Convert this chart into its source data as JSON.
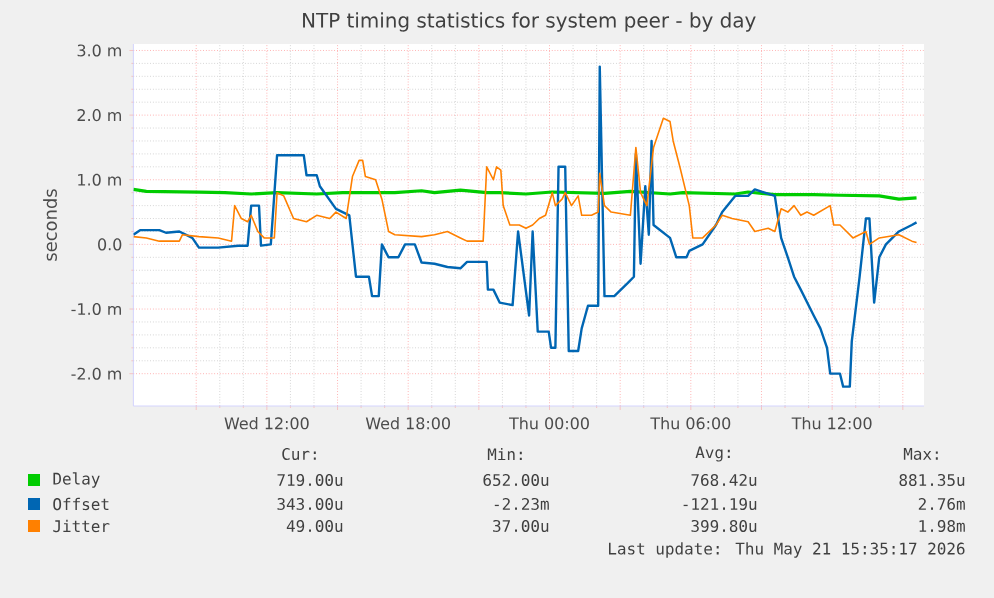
{
  "chart_data": {
    "type": "line",
    "title": "NTP timing statistics for system peer - by day",
    "ylabel": "seconds",
    "xlim": [
      "2026-05-20T06:20",
      "2026-05-21T15:54"
    ],
    "ylim": [
      -2.5,
      3.1
    ],
    "xticks": [
      {
        "value": "2026-05-20T09:00",
        "label": null
      },
      {
        "value": "2026-05-20T12:00",
        "label": "Wed 12:00"
      },
      {
        "value": "2026-05-20T15:00",
        "label": null
      },
      {
        "value": "2026-05-20T18:00",
        "label": "Wed 18:00"
      },
      {
        "value": "2026-05-20T21:00",
        "label": null
      },
      {
        "value": "2026-05-21T00:00",
        "label": "Thu 00:00"
      },
      {
        "value": "2026-05-21T03:00",
        "label": null
      },
      {
        "value": "2026-05-21T06:00",
        "label": "Thu 06:00"
      },
      {
        "value": "2026-05-21T09:00",
        "label": null
      },
      {
        "value": "2026-05-21T12:00",
        "label": "Thu 12:00"
      },
      {
        "value": "2026-05-21T15:00",
        "label": null
      }
    ],
    "yticks": [
      {
        "value": -2,
        "label": "-2.0 m"
      },
      {
        "value": -1,
        "label": "-1.0 m"
      },
      {
        "value": 0,
        "label": "0.0"
      },
      {
        "value": 1,
        "label": "1.0 m"
      },
      {
        "value": 2,
        "label": "2.0 m"
      },
      {
        "value": 3,
        "label": "3.0 m"
      }
    ],
    "grid": true,
    "legend": "bottom",
    "series": [
      {
        "name": "Delay",
        "color": "#00cc00",
        "x": [
          "2026-05-20T06:20",
          "2026-05-20T06:53",
          "2026-05-20T09:07",
          "2026-05-20T10:13",
          "2026-05-20T11:20",
          "2026-05-20T12:26",
          "2026-05-20T14:07",
          "2026-05-20T15:13",
          "2026-05-20T17:26",
          "2026-05-20T18:34",
          "2026-05-20T19:07",
          "2026-05-20T20:13",
          "2026-05-20T21:20",
          "2026-05-20T21:53",
          "2026-05-20T23:00",
          "2026-05-21T00:07",
          "2026-05-21T02:20",
          "2026-05-21T03:26",
          "2026-05-21T05:07",
          "2026-05-21T05:40",
          "2026-05-21T07:53",
          "2026-05-21T08:26",
          "2026-05-21T09:34",
          "2026-05-21T11:13",
          "2026-05-21T12:20",
          "2026-05-21T14:00",
          "2026-05-21T14:50",
          "2026-05-21T15:35"
        ],
        "values": [
          0.85,
          0.82,
          0.81,
          0.8,
          0.78,
          0.8,
          0.78,
          0.8,
          0.8,
          0.83,
          0.8,
          0.84,
          0.8,
          0.8,
          0.78,
          0.81,
          0.79,
          0.82,
          0.78,
          0.8,
          0.78,
          0.81,
          0.77,
          0.77,
          0.76,
          0.75,
          0.7,
          0.72
        ]
      },
      {
        "name": "Offset",
        "color": "#0066b3",
        "x": [
          "2026-05-20T06:20",
          "2026-05-20T06:37",
          "2026-05-20T07:26",
          "2026-05-20T07:43",
          "2026-05-20T08:17",
          "2026-05-20T08:50",
          "2026-05-20T09:07",
          "2026-05-20T09:56",
          "2026-05-20T10:47",
          "2026-05-20T11:11",
          "2026-05-20T11:20",
          "2026-05-20T11:40",
          "2026-05-20T11:45",
          "2026-05-20T12:10",
          "2026-05-20T12:26",
          "2026-05-20T13:34",
          "2026-05-20T13:41",
          "2026-05-20T14:07",
          "2026-05-20T14:15",
          "2026-05-20T14:56",
          "2026-05-20T15:30",
          "2026-05-20T15:47",
          "2026-05-20T16:20",
          "2026-05-20T16:28",
          "2026-05-20T16:45",
          "2026-05-20T16:53",
          "2026-05-20T17:10",
          "2026-05-20T17:35",
          "2026-05-20T17:52",
          "2026-05-20T18:17",
          "2026-05-20T18:34",
          "2026-05-20T19:07",
          "2026-05-20T19:40",
          "2026-05-20T20:13",
          "2026-05-20T20:30",
          "2026-05-20T21:20",
          "2026-05-20T21:23",
          "2026-05-20T21:37",
          "2026-05-20T21:53",
          "2026-05-20T22:26",
          "2026-05-20T22:40",
          "2026-05-20T23:08",
          "2026-05-20T23:17",
          "2026-05-20T23:30",
          "2026-05-20T23:58",
          "2026-05-21T00:04",
          "2026-05-21T00:15",
          "2026-05-21T00:23",
          "2026-05-21T00:40",
          "2026-05-21T00:49",
          "2026-05-21T01:13",
          "2026-05-21T01:22",
          "2026-05-21T01:38",
          "2026-05-21T02:04",
          "2026-05-21T02:08",
          "2026-05-21T02:20",
          "2026-05-21T02:45",
          "2026-05-21T03:19",
          "2026-05-21T03:35",
          "2026-05-21T03:40",
          "2026-05-21T03:52",
          "2026-05-21T04:04",
          "2026-05-21T04:13",
          "2026-05-21T04:20",
          "2026-05-21T04:25",
          "2026-05-21T05:07",
          "2026-05-21T05:23",
          "2026-05-21T05:49",
          "2026-05-21T05:56",
          "2026-05-21T06:30",
          "2026-05-21T07:04",
          "2026-05-21T07:20",
          "2026-05-21T07:53",
          "2026-05-21T08:26",
          "2026-05-21T08:43",
          "2026-05-21T09:34",
          "2026-05-21T09:50",
          "2026-05-21T10:07",
          "2026-05-21T10:23",
          "2026-05-21T10:40",
          "2026-05-21T11:13",
          "2026-05-21T11:30",
          "2026-05-21T11:47",
          "2026-05-21T11:55",
          "2026-05-21T12:20",
          "2026-05-21T12:28",
          "2026-05-21T12:45",
          "2026-05-21T12:50",
          "2026-05-21T13:02",
          "2026-05-21T13:10",
          "2026-05-21T13:26",
          "2026-05-21T13:35",
          "2026-05-21T13:47",
          "2026-05-21T14:00",
          "2026-05-21T14:17",
          "2026-05-21T14:50",
          "2026-05-21T15:23",
          "2026-05-21T15:35"
        ],
        "values": [
          0.15,
          0.22,
          0.22,
          0.18,
          0.2,
          0.1,
          -0.05,
          -0.05,
          -0.02,
          -0.02,
          0.6,
          0.6,
          -0.02,
          0.0,
          1.38,
          1.38,
          1.07,
          1.07,
          0.9,
          0.55,
          0.45,
          -0.5,
          -0.5,
          -0.8,
          -0.8,
          0.0,
          -0.2,
          -0.2,
          0.0,
          0.0,
          -0.28,
          -0.3,
          -0.35,
          -0.37,
          -0.27,
          -0.27,
          -0.7,
          -0.7,
          -0.9,
          -0.94,
          0.2,
          -1.1,
          0.2,
          -1.35,
          -1.35,
          -1.6,
          -1.6,
          1.2,
          1.2,
          -1.65,
          -1.65,
          -1.3,
          -0.95,
          -0.95,
          2.75,
          -0.8,
          -0.8,
          -0.6,
          -0.5,
          1.4,
          -0.3,
          0.9,
          0.15,
          1.6,
          0.3,
          0.1,
          -0.2,
          -0.2,
          -0.1,
          0.0,
          0.3,
          0.5,
          0.75,
          0.75,
          0.85,
          0.75,
          0.1,
          -0.2,
          -0.5,
          -0.7,
          -1.1,
          -1.3,
          -1.6,
          -2.0,
          -2.0,
          -2.2,
          -2.2,
          -1.5,
          -0.9,
          -0.5,
          0.4,
          0.4,
          -0.9,
          -0.2,
          0.0,
          0.2,
          0.3,
          0.34
        ]
      },
      {
        "name": "Jitter",
        "color": "#ff8000",
        "x": [
          "2026-05-20T06:20",
          "2026-05-20T06:53",
          "2026-05-20T07:26",
          "2026-05-20T08:17",
          "2026-05-20T08:25",
          "2026-05-20T09:07",
          "2026-05-20T09:56",
          "2026-05-20T10:30",
          "2026-05-20T10:38",
          "2026-05-20T10:55",
          "2026-05-20T11:11",
          "2026-05-20T11:20",
          "2026-05-20T11:37",
          "2026-05-20T11:53",
          "2026-05-20T12:19",
          "2026-05-20T12:26",
          "2026-05-20T12:43",
          "2026-05-20T13:08",
          "2026-05-20T13:41",
          "2026-05-20T14:07",
          "2026-05-20T14:40",
          "2026-05-20T14:56",
          "2026-05-20T15:22",
          "2026-05-20T15:38",
          "2026-05-20T15:55",
          "2026-05-20T16:04",
          "2026-05-20T16:11",
          "2026-05-20T16:37",
          "2026-05-20T16:53",
          "2026-05-20T17:10",
          "2026-05-20T17:26",
          "2026-05-20T18:34",
          "2026-05-20T19:07",
          "2026-05-20T19:40",
          "2026-05-20T20:13",
          "2026-05-20T20:30",
          "2026-05-20T21:11",
          "2026-05-20T21:20",
          "2026-05-20T21:37",
          "2026-05-20T21:45",
          "2026-05-20T21:56",
          "2026-05-20T22:02",
          "2026-05-20T22:19",
          "2026-05-20T22:43",
          "2026-05-20T23:00",
          "2026-05-20T23:17",
          "2026-05-20T23:34",
          "2026-05-20T23:50",
          "2026-05-21T00:07",
          "2026-05-21T00:15",
          "2026-05-21T00:32",
          "2026-05-21T00:40",
          "2026-05-21T00:56",
          "2026-05-21T01:13",
          "2026-05-21T01:22",
          "2026-05-21T01:47",
          "2026-05-21T02:04",
          "2026-05-21T02:08",
          "2026-05-21T02:20",
          "2026-05-21T02:37",
          "2026-05-21T03:26",
          "2026-05-21T03:40",
          "2026-05-21T03:52",
          "2026-05-21T04:08",
          "2026-05-21T04:25",
          "2026-05-21T04:50",
          "2026-05-21T05:07",
          "2026-05-21T05:15",
          "2026-05-21T05:32",
          "2026-05-21T05:56",
          "2026-05-21T06:05",
          "2026-05-21T06:30",
          "2026-05-21T07:04",
          "2026-05-21T07:20",
          "2026-05-21T07:45",
          "2026-05-21T08:26",
          "2026-05-21T08:43",
          "2026-05-21T09:17",
          "2026-05-21T09:34",
          "2026-05-21T09:50",
          "2026-05-21T10:07",
          "2026-05-21T10:23",
          "2026-05-21T10:40",
          "2026-05-21T10:56",
          "2026-05-21T11:13",
          "2026-05-21T11:55",
          "2026-05-21T12:04",
          "2026-05-21T12:20",
          "2026-05-21T12:53",
          "2026-05-21T13:26",
          "2026-05-21T13:35",
          "2026-05-21T14:00",
          "2026-05-21T14:50",
          "2026-05-21T15:23",
          "2026-05-21T15:35"
        ],
        "values": [
          0.12,
          0.1,
          0.05,
          0.05,
          0.15,
          0.12,
          0.1,
          0.05,
          0.6,
          0.4,
          0.35,
          0.45,
          0.2,
          0.1,
          0.1,
          0.8,
          0.75,
          0.4,
          0.35,
          0.45,
          0.4,
          0.5,
          0.4,
          1.05,
          1.3,
          1.3,
          1.05,
          1.0,
          0.7,
          0.2,
          0.15,
          0.12,
          0.15,
          0.2,
          0.1,
          0.05,
          0.05,
          1.2,
          1.0,
          1.2,
          1.15,
          0.6,
          0.3,
          0.3,
          0.25,
          0.3,
          0.4,
          0.45,
          0.8,
          0.6,
          0.7,
          0.8,
          0.6,
          0.75,
          0.45,
          0.45,
          0.5,
          1.1,
          0.6,
          0.5,
          0.45,
          1.5,
          0.8,
          0.6,
          1.5,
          1.95,
          1.9,
          1.6,
          1.2,
          0.6,
          0.1,
          0.1,
          0.3,
          0.45,
          0.4,
          0.35,
          0.2,
          0.25,
          0.2,
          0.55,
          0.5,
          0.6,
          0.45,
          0.5,
          0.45,
          0.6,
          0.3,
          0.3,
          0.1,
          0.2,
          0.0,
          0.1,
          0.15,
          0.05,
          0.03
        ]
      }
    ],
    "annotations": [
      "Cur:",
      "Min:",
      "Avg:",
      "Max:",
      "719.00u",
      "652.00u",
      "768.42u",
      "881.35u",
      "343.00u",
      "-2.23m",
      "-121.19u",
      "2.76m",
      "49.00u",
      "37.00u",
      "399.80u",
      "1.98m",
      "Last update: Thu May 21 15:35:17 2026"
    ]
  }
}
